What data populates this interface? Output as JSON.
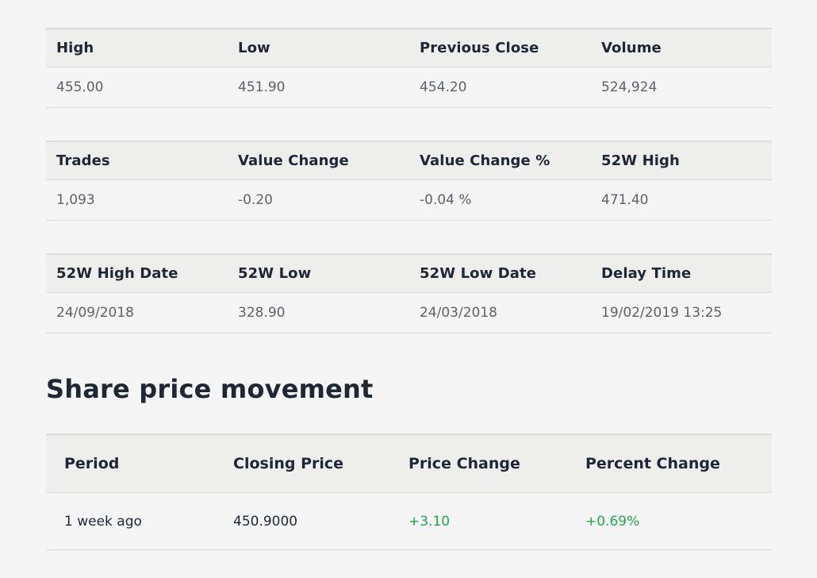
{
  "stats": [
    {
      "headers": [
        "High",
        "Low",
        "Previous Close",
        "Volume"
      ],
      "values": [
        "455.00",
        "451.90",
        "454.20",
        "524,924"
      ]
    },
    {
      "headers": [
        "Trades",
        "Value Change",
        "Value Change %",
        "52W High"
      ],
      "values": [
        "1,093",
        "-0.20",
        "-0.04 %",
        "471.40"
      ]
    },
    {
      "headers": [
        "52W High Date",
        "52W Low",
        "52W Low Date",
        "Delay Time"
      ],
      "values": [
        "24/09/2018",
        "328.90",
        "24/03/2018",
        "19/02/2019 13:25"
      ]
    }
  ],
  "movement": {
    "title": "Share price movement",
    "headers": [
      "Period",
      "Closing Price",
      "Price Change",
      "Percent Change"
    ],
    "rows": [
      {
        "period": "1 week ago",
        "closing_price": "450.9000",
        "price_change": "+3.10",
        "percent_change": "+0.69%"
      }
    ]
  },
  "colors": {
    "positive": "#1faa4e",
    "header_bg": "#eeeeec",
    "page_bg": "#f5f5f5"
  }
}
